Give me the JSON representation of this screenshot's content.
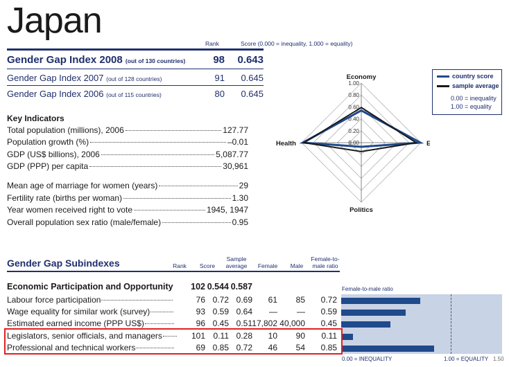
{
  "country": "Japan",
  "header": {
    "rank_label": "Rank",
    "score_label": "Score (0.000 = inequality, 1.000 = equality)"
  },
  "gender_gap": [
    {
      "label": "Gender Gap Index 2008",
      "sub": "(out of 130 countries)",
      "rank": "98",
      "score": "0.643"
    },
    {
      "label": "Gender Gap Index 2007",
      "sub": "(out of 128 countries)",
      "rank": "91",
      "score": "0.645"
    },
    {
      "label": "Gender Gap Index 2006",
      "sub": "(out of 115 countries)",
      "rank": "80",
      "score": "0.645"
    }
  ],
  "key_indicators": {
    "title": "Key Indicators",
    "group1": [
      {
        "label": "Total population (millions), 2006",
        "value": "127.77"
      },
      {
        "label": "Population growth (%)",
        "value": "–0.01"
      },
      {
        "label": "GDP (US$ billions), 2006",
        "value": "5,087.77"
      },
      {
        "label": "GDP (PPP) per capita",
        "value": "30,961"
      }
    ],
    "group2": [
      {
        "label": "Mean age of marriage for women (years)",
        "value": "29"
      },
      {
        "label": "Fertility rate (births per woman)",
        "value": "1.30"
      },
      {
        "label": "Year women received right to vote",
        "value": "1945, 1947"
      },
      {
        "label": "Overall population sex ratio (male/female)",
        "value": "0.95"
      }
    ]
  },
  "chart_data": [
    {
      "type": "radar",
      "axes": [
        "Economy",
        "Education",
        "Politics",
        "Health"
      ],
      "tick_labels": [
        "1.00",
        "0.80",
        "0.60",
        "0.40",
        "0.20",
        "0.00"
      ],
      "range": [
        0,
        1
      ],
      "series": [
        {
          "name": "country score",
          "values": [
            0.54,
            0.99,
            0.07,
            0.98
          ],
          "color": "#1f4a8c"
        },
        {
          "name": "sample average",
          "values": [
            0.59,
            0.92,
            0.15,
            0.96
          ],
          "color": "#1a1a1a"
        }
      ],
      "legend_notes": [
        "0.00 = inequality",
        "1.00 = equality"
      ]
    },
    {
      "type": "bar",
      "title": "Female-to-male ratio",
      "categories": [
        "Labour force participation",
        "Wage equality for similar work (survey)",
        "Estimated earned income (PPP US$)",
        "Legislators, senior officials, and managers",
        "Professional and technical workers"
      ],
      "values": [
        0.72,
        0.59,
        0.45,
        0.11,
        0.85
      ],
      "xlim": [
        0,
        1.5
      ],
      "axis_labels": [
        "0.00 = INEQUALITY",
        "1.00 = EQUALITY",
        "1.50"
      ]
    }
  ],
  "subindexes": {
    "title": "Gender Gap Subindexes",
    "columns": [
      "Rank",
      "Score",
      "Sample average",
      "Female",
      "Male",
      "Female-to-male ratio"
    ],
    "section": {
      "label": "Economic Participation and Opportunity",
      "rank": "102",
      "score": "0.544",
      "avg": "0.587"
    },
    "rows": [
      {
        "label": "Labour force participation",
        "rank": "76",
        "score": "0.72",
        "avg": "0.69",
        "female": "61",
        "male": "85",
        "ratio": "0.72"
      },
      {
        "label": "Wage equality for similar work (survey)",
        "rank": "93",
        "score": "0.59",
        "avg": "0.64",
        "female": "—",
        "male": "—",
        "ratio": "0.59"
      },
      {
        "label": "Estimated earned income (PPP US$)",
        "rank": "96",
        "score": "0.45",
        "avg": "0.51",
        "female": "17,802",
        "male": "40,000",
        "ratio": "0.45"
      },
      {
        "label": "Legislators, senior officials, and managers",
        "rank": "101",
        "score": "0.11",
        "avg": "0.28",
        "female": "10",
        "male": "90",
        "ratio": "0.11"
      },
      {
        "label": "Professional and technical workers",
        "rank": "69",
        "score": "0.85",
        "avg": "0.72",
        "female": "46",
        "male": "54",
        "ratio": "0.85"
      }
    ]
  }
}
